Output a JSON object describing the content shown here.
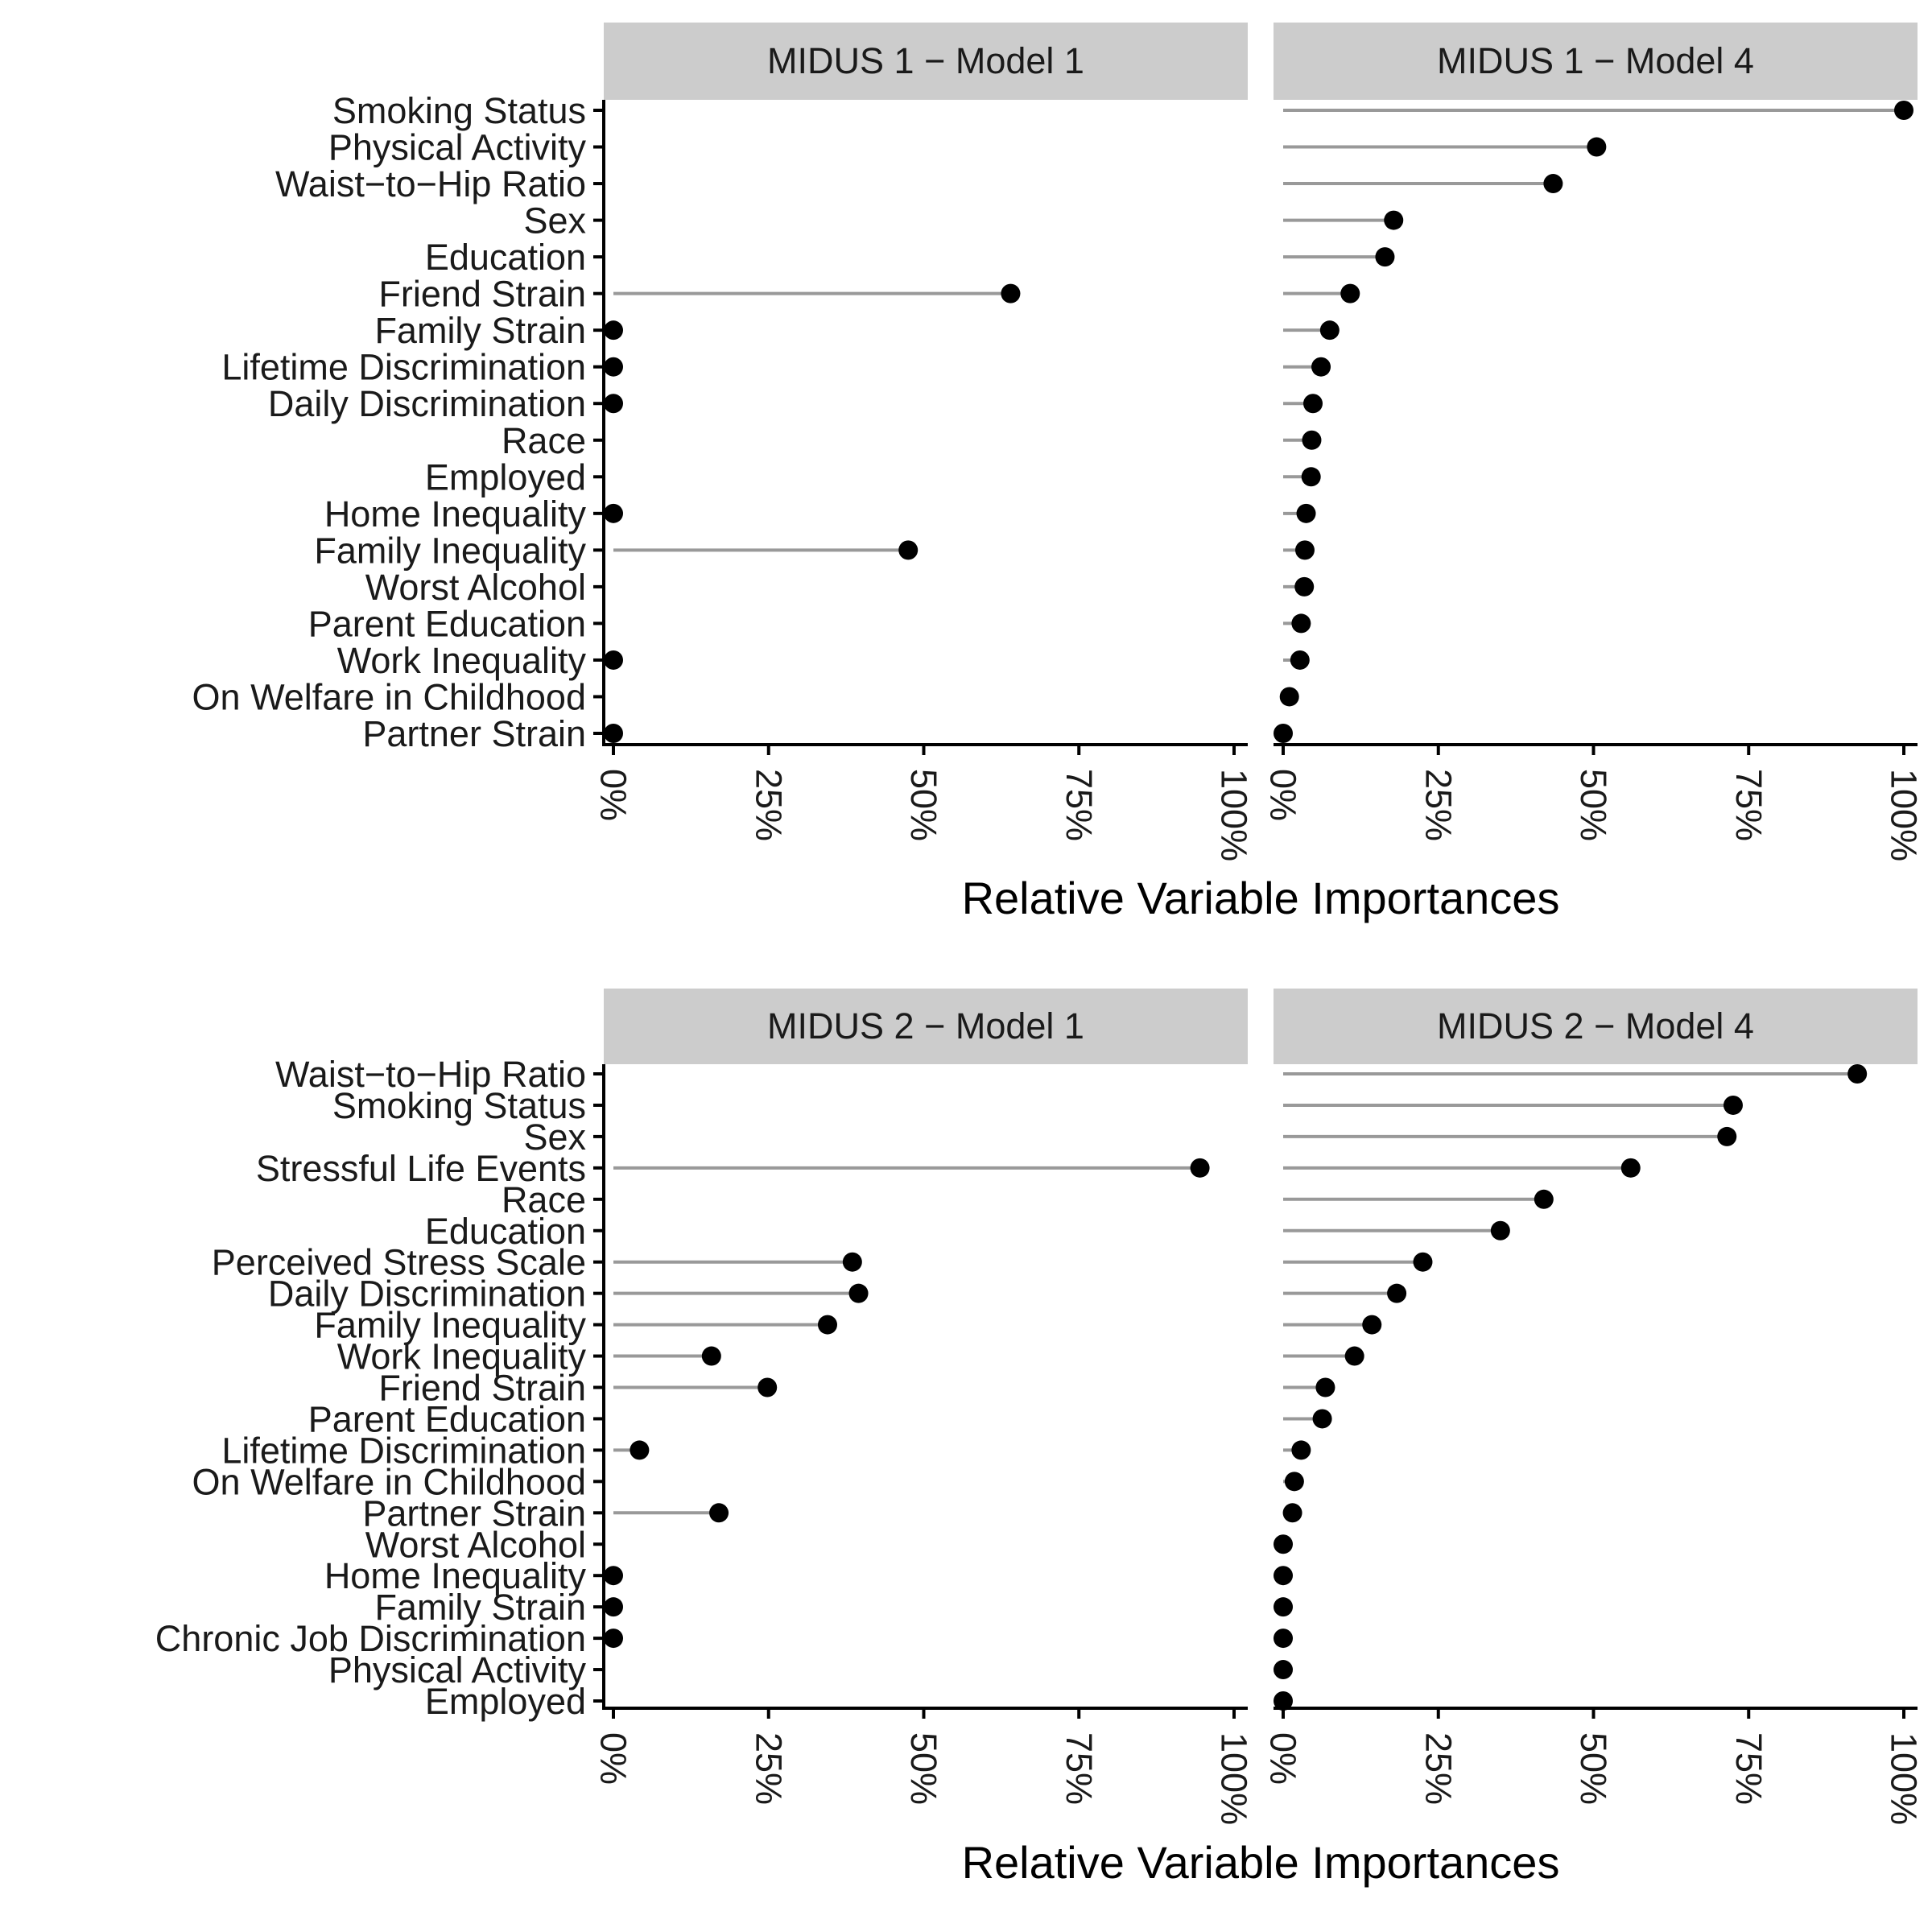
{
  "chart_data": {
    "type": "lollipop",
    "x_ticks": [
      "0%",
      "25%",
      "50%",
      "75%",
      "100%"
    ],
    "xlim": [
      0,
      100
    ],
    "grid": false,
    "colors": {
      "strip": "#cccccc",
      "segment": "#999999",
      "point": "#000000",
      "axis": "#000000"
    },
    "rows": [
      {
        "xlabel": "Relative Variable Importances",
        "categories": [
          "Smoking Status",
          "Physical Activity",
          "Waist−to−Hip Ratio",
          "Sex",
          "Education",
          "Friend Strain",
          "Family Strain",
          "Lifetime Discrimination",
          "Daily Discrimination",
          "Race",
          "Employed",
          "Home Inequality",
          "Family Inequality",
          "Worst Alcohol",
          "Parent Education",
          "Work Inequality",
          "On Welfare in Childhood",
          "Partner Strain"
        ],
        "panels": [
          {
            "title": "MIDUS 1 − Model 1",
            "values": [
              null,
              null,
              null,
              null,
              null,
              64,
              0,
              0,
              0,
              null,
              null,
              0,
              47.5,
              null,
              null,
              0,
              null,
              0
            ]
          },
          {
            "title": "MIDUS 1 − Model 4",
            "values": [
              100,
              50.5,
              43.5,
              17.8,
              16.4,
              10.8,
              7.5,
              6.1,
              4.8,
              4.6,
              4.5,
              3.7,
              3.5,
              3.4,
              2.9,
              2.7,
              1.0,
              0
            ]
          }
        ]
      },
      {
        "xlabel": "Relative Variable Importances",
        "categories": [
          "Waist−to−Hip Ratio",
          "Smoking Status",
          "Sex",
          "Stressful Life Events",
          "Race",
          "Education",
          "Perceived Stress Scale",
          "Daily Discrimination",
          "Family Inequality",
          "Work Inequality",
          "Friend Strain",
          "Parent Education",
          "Lifetime Discrimination",
          "On Welfare in Childhood",
          "Partner Strain",
          "Worst Alcohol",
          "Home Inequality",
          "Family Strain",
          "Chronic Job Discrimination",
          "Physical Activity",
          "Employed"
        ],
        "panels": [
          {
            "title": "MIDUS 2 − Model 1",
            "values": [
              null,
              null,
              null,
              94.5,
              null,
              null,
              38.5,
              39.5,
              34.5,
              15.8,
              24.8,
              null,
              4.2,
              null,
              17,
              null,
              0,
              0,
              0,
              null,
              null
            ]
          },
          {
            "title": "MIDUS 2 − Model 4",
            "values": [
              92.5,
              72.5,
              71.5,
              56,
              42,
              35,
              22.5,
              18.3,
              14.3,
              11.5,
              6.8,
              6.3,
              2.9,
              1.8,
              1.5,
              0,
              0,
              0,
              0,
              0,
              0
            ]
          }
        ]
      }
    ]
  }
}
